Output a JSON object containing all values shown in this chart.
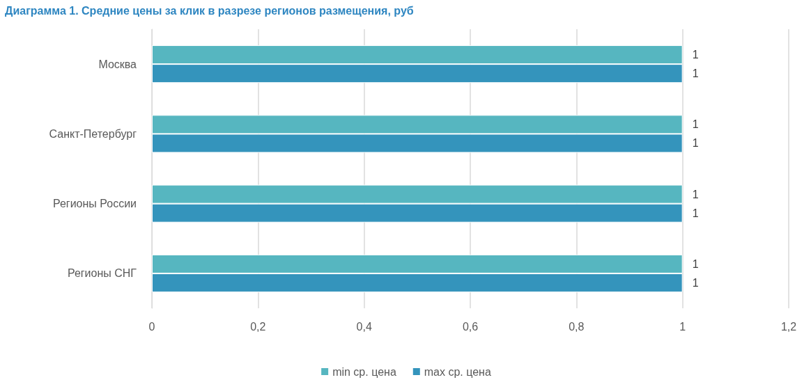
{
  "chart_data": {
    "type": "bar",
    "orientation": "horizontal",
    "title": "Диаграмма 1. Средние цены за клик в разрезе регионов размещения, руб",
    "categories": [
      "Москва",
      "Санкт-Петербург",
      "Регионы России",
      "Регионы СНГ"
    ],
    "series": [
      {
        "name": "min ср. цена",
        "color": "#56b6c0",
        "values": [
          1,
          1,
          1,
          1
        ]
      },
      {
        "name": "max ср. цена",
        "color": "#3494bc",
        "values": [
          1,
          1,
          1,
          1
        ]
      }
    ],
    "xlim": [
      0,
      1.2
    ],
    "xticks": [
      {
        "value": 0,
        "label": "0"
      },
      {
        "value": 0.2,
        "label": "0,2"
      },
      {
        "value": 0.4,
        "label": "0,4"
      },
      {
        "value": 0.6,
        "label": "0,6"
      },
      {
        "value": 0.8,
        "label": "0,8"
      },
      {
        "value": 1,
        "label": "1"
      },
      {
        "value": 1.2,
        "label": "1,2"
      }
    ],
    "grid": "x",
    "legend": "bottom",
    "data_labels": true
  }
}
